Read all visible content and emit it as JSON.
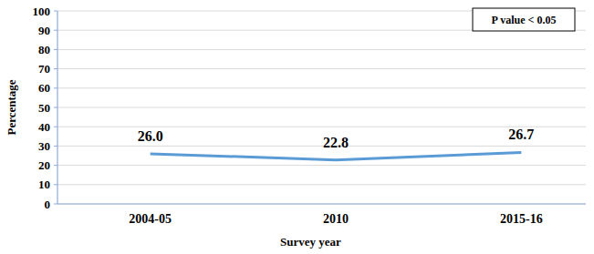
{
  "chart_data": {
    "type": "line",
    "categories": [
      "2004-05",
      "2010",
      "2015-16"
    ],
    "values": [
      26.0,
      22.8,
      26.7
    ],
    "value_labels": [
      "26.0",
      "22.8",
      "26.7"
    ],
    "color": "#5b9bd5",
    "xlabel": "Survey year",
    "ylabel": "Percentage",
    "annotation": "P value < 0.05",
    "ylim": [
      0,
      100
    ],
    "yticks": [
      0,
      10,
      20,
      30,
      40,
      50,
      60,
      70,
      80,
      90,
      100
    ],
    "grid": true,
    "data_labels": true
  }
}
